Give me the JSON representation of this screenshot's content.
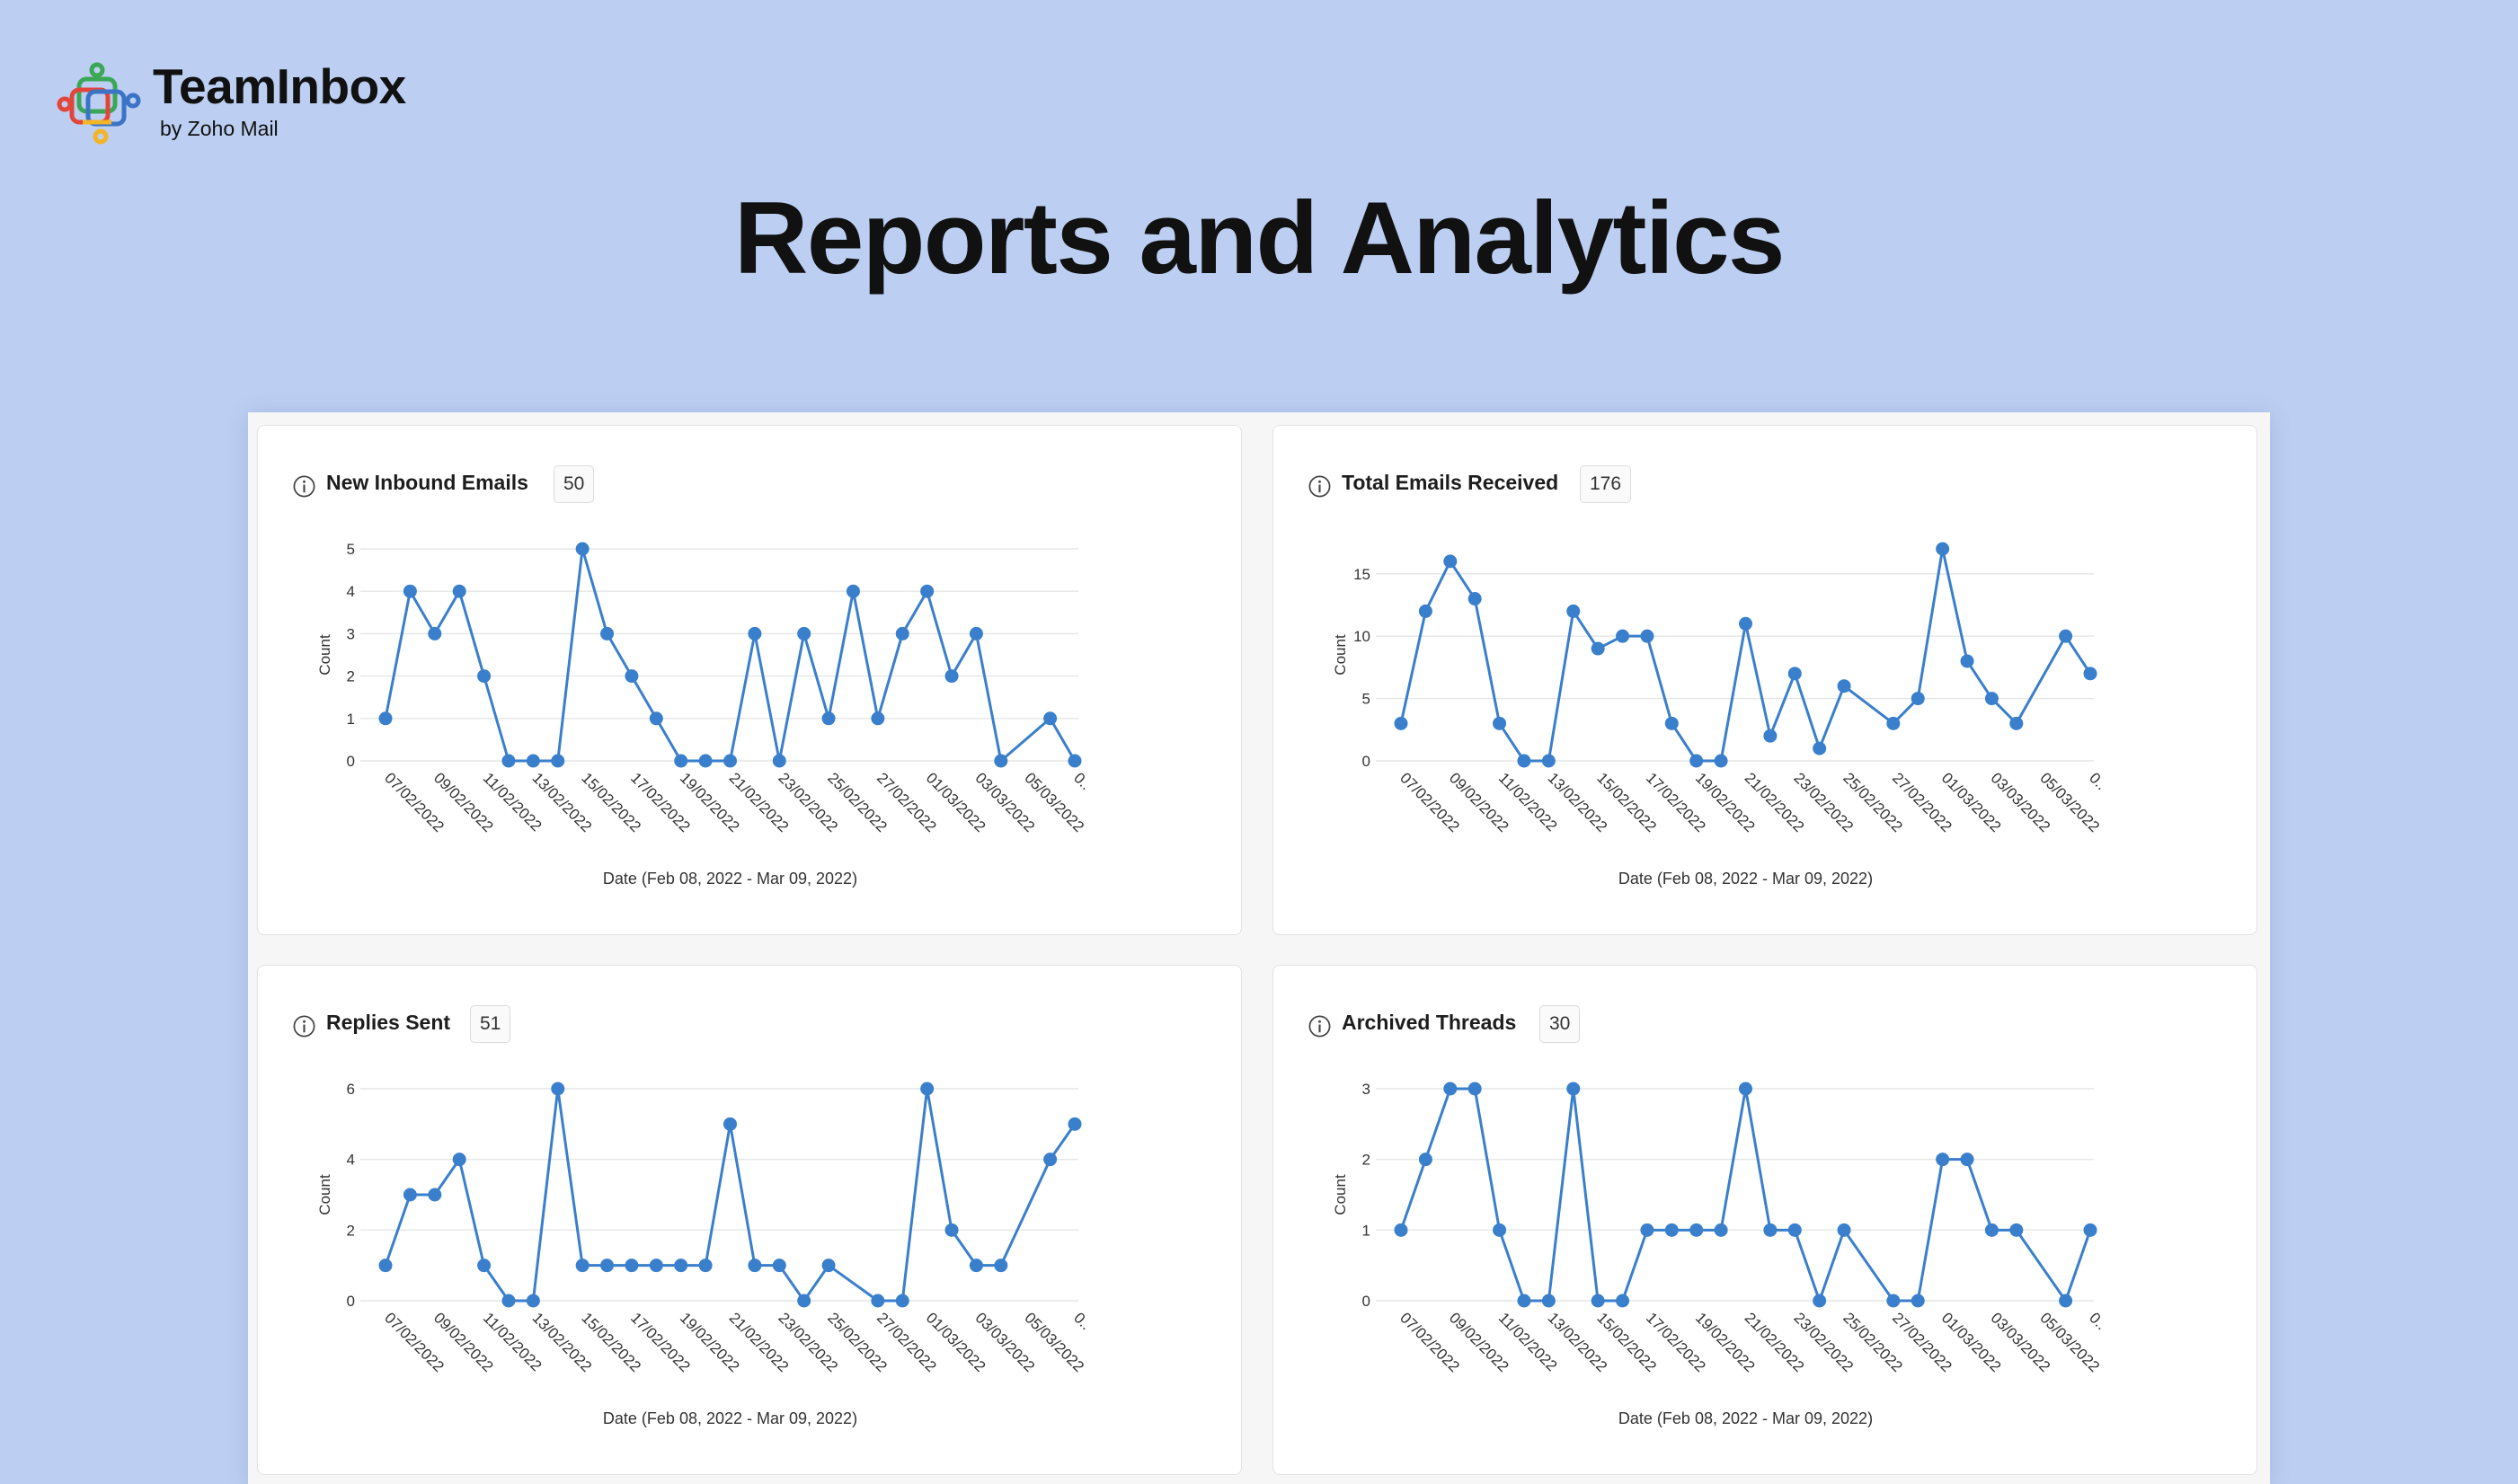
{
  "brand": {
    "name": "TeamInbox",
    "subtitle": "by Zoho Mail"
  },
  "page": {
    "title": "Reports and Analytics"
  },
  "colors": {
    "background": "#bccff2",
    "line": "#3a7fcc",
    "grid": "#e6e6e6"
  },
  "charts": [
    {
      "title": "New Inbound Emails",
      "count": "50",
      "icon": "info-icon",
      "chart_data": {
        "type": "line",
        "ylabel": "Count",
        "xlabel": "Date (Feb 08, 2022 - Mar 09, 2022)",
        "yticks": [
          0,
          1,
          2,
          3,
          4,
          5
        ],
        "ylim": [
          0,
          5
        ],
        "xticks": [
          "07/02/2022",
          "09/02/2022",
          "11/02/2022",
          "13/02/2022",
          "15/02/2022",
          "17/02/2022",
          "19/02/2022",
          "21/02/2022",
          "23/02/2022",
          "25/02/2022",
          "27/02/2022",
          "01/03/2022",
          "03/03/2022",
          "05/03/2022",
          "0.."
        ],
        "series": [
          {
            "points": [
              [
                0,
                1
              ],
              [
                1,
                4
              ],
              [
                2,
                3
              ],
              [
                3,
                4
              ],
              [
                4,
                2
              ],
              [
                5,
                0
              ],
              [
                6,
                0
              ],
              [
                7,
                0
              ],
              [
                8,
                5
              ],
              [
                9,
                3
              ],
              [
                10,
                2
              ],
              [
                11,
                1
              ],
              [
                12,
                0
              ],
              [
                13,
                0
              ],
              [
                14,
                0
              ],
              [
                15,
                3
              ],
              [
                16,
                0
              ],
              [
                17,
                3
              ],
              [
                18,
                1
              ],
              [
                19,
                4
              ],
              [
                20,
                1
              ],
              [
                21,
                3
              ],
              [
                22,
                4
              ],
              [
                23,
                2
              ],
              [
                24,
                3
              ],
              [
                25,
                0
              ],
              [
                27,
                1
              ],
              [
                28,
                0
              ]
            ]
          }
        ],
        "grid": true
      }
    },
    {
      "title": "Total Emails Received",
      "count": "176",
      "icon": "info-icon",
      "chart_data": {
        "type": "line",
        "ylabel": "Count",
        "xlabel": "Date (Feb 08, 2022 - Mar 09, 2022)",
        "yticks": [
          0,
          5,
          10,
          15
        ],
        "ylim": [
          0,
          17
        ],
        "xticks": [
          "07/02/2022",
          "09/02/2022",
          "11/02/2022",
          "13/02/2022",
          "15/02/2022",
          "17/02/2022",
          "19/02/2022",
          "21/02/2022",
          "23/02/2022",
          "25/02/2022",
          "27/02/2022",
          "01/03/2022",
          "03/03/2022",
          "05/03/2022",
          "0.."
        ],
        "series": [
          {
            "points": [
              [
                0,
                3
              ],
              [
                1,
                12
              ],
              [
                2,
                16
              ],
              [
                3,
                13
              ],
              [
                4,
                3
              ],
              [
                5,
                0
              ],
              [
                6,
                0
              ],
              [
                7,
                12
              ],
              [
                8,
                9
              ],
              [
                9,
                10
              ],
              [
                10,
                10
              ],
              [
                11,
                3
              ],
              [
                12,
                0
              ],
              [
                13,
                0
              ],
              [
                14,
                11
              ],
              [
                15,
                2
              ],
              [
                16,
                7
              ],
              [
                17,
                1
              ],
              [
                18,
                6
              ],
              [
                20,
                3
              ],
              [
                21,
                5
              ],
              [
                22,
                17
              ],
              [
                23,
                8
              ],
              [
                24,
                5
              ],
              [
                25,
                3
              ],
              [
                27,
                10
              ],
              [
                28,
                7
              ]
            ]
          }
        ],
        "grid": true
      }
    },
    {
      "title": "Replies Sent",
      "count": "51",
      "icon": "info-icon",
      "chart_data": {
        "type": "line",
        "ylabel": "Count",
        "xlabel": "Date (Feb 08, 2022 - Mar 09, 2022)",
        "yticks": [
          0,
          2,
          4,
          6
        ],
        "ylim": [
          0,
          6
        ],
        "xticks": [
          "07/02/2022",
          "09/02/2022",
          "11/02/2022",
          "13/02/2022",
          "15/02/2022",
          "17/02/2022",
          "19/02/2022",
          "21/02/2022",
          "23/02/2022",
          "25/02/2022",
          "27/02/2022",
          "01/03/2022",
          "03/03/2022",
          "05/03/2022",
          "0.."
        ],
        "series": [
          {
            "points": [
              [
                0,
                1
              ],
              [
                1,
                3
              ],
              [
                2,
                3
              ],
              [
                3,
                4
              ],
              [
                4,
                1
              ],
              [
                5,
                0
              ],
              [
                6,
                0
              ],
              [
                7,
                6
              ],
              [
                8,
                1
              ],
              [
                9,
                1
              ],
              [
                10,
                1
              ],
              [
                11,
                1
              ],
              [
                12,
                1
              ],
              [
                13,
                1
              ],
              [
                14,
                5
              ],
              [
                15,
                1
              ],
              [
                16,
                1
              ],
              [
                17,
                0
              ],
              [
                18,
                1
              ],
              [
                20,
                0
              ],
              [
                21,
                0
              ],
              [
                22,
                6
              ],
              [
                23,
                2
              ],
              [
                24,
                1
              ],
              [
                25,
                1
              ],
              [
                27,
                4
              ],
              [
                28,
                5
              ]
            ]
          }
        ],
        "grid": true
      }
    },
    {
      "title": "Archived Threads",
      "count": "30",
      "icon": "info-icon",
      "chart_data": {
        "type": "line",
        "ylabel": "Count",
        "xlabel": "Date (Feb 08, 2022 - Mar 09, 2022)",
        "yticks": [
          0,
          1,
          2,
          3
        ],
        "ylim": [
          0,
          3
        ],
        "xticks": [
          "07/02/2022",
          "09/02/2022",
          "11/02/2022",
          "13/02/2022",
          "15/02/2022",
          "17/02/2022",
          "19/02/2022",
          "21/02/2022",
          "23/02/2022",
          "25/02/2022",
          "27/02/2022",
          "01/03/2022",
          "03/03/2022",
          "05/03/2022",
          "0.."
        ],
        "series": [
          {
            "points": [
              [
                0,
                1
              ],
              [
                1,
                2
              ],
              [
                2,
                3
              ],
              [
                3,
                3
              ],
              [
                4,
                1
              ],
              [
                5,
                0
              ],
              [
                6,
                0
              ],
              [
                7,
                3
              ],
              [
                8,
                0
              ],
              [
                9,
                0
              ],
              [
                10,
                1
              ],
              [
                11,
                1
              ],
              [
                12,
                1
              ],
              [
                13,
                1
              ],
              [
                14,
                3
              ],
              [
                15,
                1
              ],
              [
                16,
                1
              ],
              [
                17,
                0
              ],
              [
                18,
                1
              ],
              [
                20,
                0
              ],
              [
                21,
                0
              ],
              [
                22,
                2
              ],
              [
                23,
                2
              ],
              [
                24,
                1
              ],
              [
                25,
                1
              ],
              [
                27,
                0
              ],
              [
                28,
                1
              ]
            ]
          }
        ],
        "grid": true
      }
    }
  ]
}
